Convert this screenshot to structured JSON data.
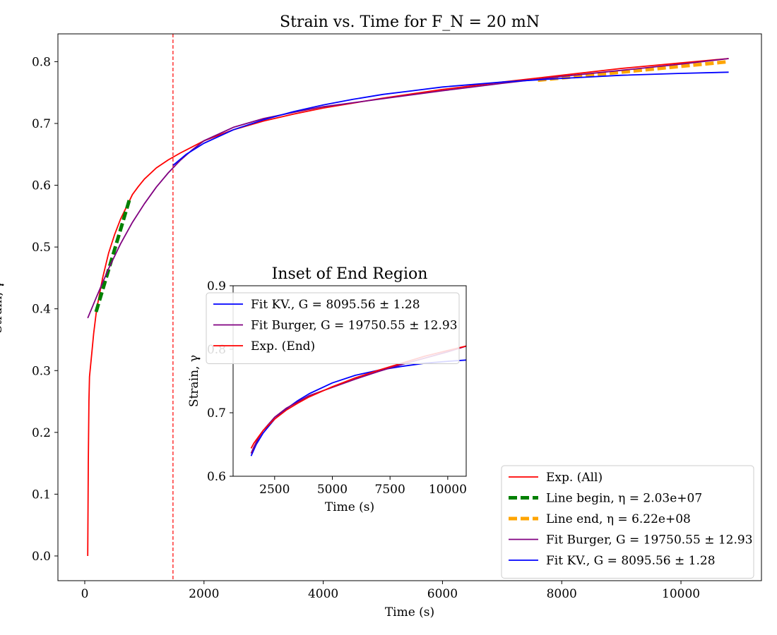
{
  "chart_data": [
    {
      "id": "main",
      "type": "line",
      "title": "Strain vs. Time for F_N = 20 mN",
      "xlabel": "Time (s)",
      "ylabel": "Strain, γ",
      "xlim": [
        -450,
        11350
      ],
      "ylim": [
        -0.04,
        0.845
      ],
      "xticks": [
        0,
        2000,
        4000,
        6000,
        8000,
        10000
      ],
      "yticks": [
        0.0,
        0.1,
        0.2,
        0.3,
        0.4,
        0.5,
        0.6,
        0.7,
        0.8
      ],
      "xtick_labels": [
        "0",
        "2000",
        "4000",
        "6000",
        "8000",
        "10000"
      ],
      "ytick_labels": [
        "0.0",
        "0.1",
        "0.2",
        "0.3",
        "0.4",
        "0.5",
        "0.6",
        "0.7",
        "0.8"
      ],
      "grid": false,
      "legend_position": "bottom-right",
      "vline": {
        "x": 1480,
        "color": "#ff0000",
        "style": "dashed"
      },
      "series": [
        {
          "name": "Exp. (All)",
          "color": "#ff0000",
          "style": "solid",
          "points": [
            [
              50,
              0.0
            ],
            [
              60,
              0.15
            ],
            [
              70,
              0.25
            ],
            [
              80,
              0.29
            ],
            [
              100,
              0.31
            ],
            [
              120,
              0.33
            ],
            [
              150,
              0.36
            ],
            [
              200,
              0.4
            ],
            [
              300,
              0.45
            ],
            [
              400,
              0.49
            ],
            [
              500,
              0.52
            ],
            [
              600,
              0.545
            ],
            [
              700,
              0.565
            ],
            [
              800,
              0.585
            ],
            [
              900,
              0.598
            ],
            [
              1000,
              0.61
            ],
            [
              1200,
              0.628
            ],
            [
              1400,
              0.641
            ],
            [
              1600,
              0.652
            ],
            [
              1800,
              0.662
            ],
            [
              2000,
              0.672
            ],
            [
              2500,
              0.69
            ],
            [
              3000,
              0.704
            ],
            [
              3500,
              0.715
            ],
            [
              4000,
              0.725
            ],
            [
              4500,
              0.733
            ],
            [
              5000,
              0.741
            ],
            [
              5500,
              0.748
            ],
            [
              6000,
              0.755
            ],
            [
              7000,
              0.767
            ],
            [
              8000,
              0.778
            ],
            [
              9000,
              0.789
            ],
            [
              10000,
              0.798
            ],
            [
              10800,
              0.805
            ]
          ]
        },
        {
          "name": "Line begin, η = 2.03e+07",
          "color": "#008000",
          "style": "dashed",
          "points": [
            [
              190,
              0.395
            ],
            [
              760,
              0.58
            ]
          ]
        },
        {
          "name": "Line end, η = 6.22e+08",
          "color": "#ffa500",
          "style": "dashed",
          "points": [
            [
              7600,
              0.77
            ],
            [
              10800,
              0.8
            ]
          ]
        },
        {
          "name": "Fit Burger, G = 19750.55 ± 12.93",
          "color": "#800080",
          "style": "solid",
          "points": [
            [
              50,
              0.385
            ],
            [
              200,
              0.42
            ],
            [
              400,
              0.465
            ],
            [
              600,
              0.505
            ],
            [
              800,
              0.54
            ],
            [
              1000,
              0.57
            ],
            [
              1200,
              0.597
            ],
            [
              1400,
              0.62
            ],
            [
              1600,
              0.64
            ],
            [
              1800,
              0.657
            ],
            [
              2000,
              0.672
            ],
            [
              2500,
              0.694
            ],
            [
              3000,
              0.708
            ],
            [
              3500,
              0.718
            ],
            [
              4000,
              0.727
            ],
            [
              5000,
              0.74
            ],
            [
              6000,
              0.753
            ],
            [
              7000,
              0.765
            ],
            [
              8000,
              0.776
            ],
            [
              9000,
              0.786
            ],
            [
              10000,
              0.796
            ],
            [
              10800,
              0.805
            ]
          ]
        },
        {
          "name": "Fit KV., G = 8095.56 ± 1.28",
          "color": "#0000ff",
          "style": "solid",
          "points": [
            [
              1480,
              0.632
            ],
            [
              1700,
              0.65
            ],
            [
              2000,
              0.668
            ],
            [
              2500,
              0.69
            ],
            [
              3000,
              0.706
            ],
            [
              3500,
              0.719
            ],
            [
              4000,
              0.73
            ],
            [
              4500,
              0.739
            ],
            [
              5000,
              0.747
            ],
            [
              5500,
              0.753
            ],
            [
              6000,
              0.759
            ],
            [
              7000,
              0.767
            ],
            [
              8000,
              0.773
            ],
            [
              9000,
              0.778
            ],
            [
              10000,
              0.781
            ],
            [
              10800,
              0.783
            ]
          ]
        }
      ]
    },
    {
      "id": "inset",
      "type": "line",
      "title": "Inset of End Region",
      "xlabel": "Time (s)",
      "ylabel": "Strain, γ",
      "xlim": [
        700,
        10800
      ],
      "ylim": [
        0.6,
        0.9
      ],
      "xticks": [
        2500,
        5000,
        7500,
        10000
      ],
      "yticks": [
        0.6,
        0.7,
        0.8,
        0.9
      ],
      "xtick_labels": [
        "2500",
        "5000",
        "7500",
        "10000"
      ],
      "ytick_labels": [
        "0.6",
        "0.7",
        "0.8",
        "0.9"
      ],
      "grid": false,
      "legend_position": "top-left",
      "series": [
        {
          "name": "Fit KV., G = 8095.56 ± 1.28",
          "color": "#0000ff",
          "style": "solid",
          "points": [
            [
              1480,
              0.632
            ],
            [
              1700,
              0.65
            ],
            [
              2000,
              0.668
            ],
            [
              2500,
              0.69
            ],
            [
              3000,
              0.706
            ],
            [
              3500,
              0.719
            ],
            [
              4000,
              0.73
            ],
            [
              5000,
              0.747
            ],
            [
              6000,
              0.759
            ],
            [
              7000,
              0.767
            ],
            [
              8000,
              0.773
            ],
            [
              9000,
              0.778
            ],
            [
              10000,
              0.781
            ],
            [
              10800,
              0.783
            ]
          ]
        },
        {
          "name": "Fit Burger, G = 19750.55 ± 12.93",
          "color": "#800080",
          "style": "solid",
          "points": [
            [
              1480,
              0.636
            ],
            [
              1600,
              0.646
            ],
            [
              1800,
              0.66
            ],
            [
              2000,
              0.672
            ],
            [
              2500,
              0.693
            ],
            [
              3000,
              0.707
            ],
            [
              3500,
              0.717
            ],
            [
              4000,
              0.727
            ],
            [
              5000,
              0.74
            ],
            [
              6000,
              0.753
            ],
            [
              7000,
              0.765
            ],
            [
              8000,
              0.776
            ],
            [
              9000,
              0.786
            ],
            [
              10000,
              0.796
            ],
            [
              10800,
              0.805
            ]
          ]
        },
        {
          "name": "Exp. (End)",
          "color": "#ff0000",
          "style": "solid",
          "points": [
            [
              1480,
              0.644
            ],
            [
              1600,
              0.652
            ],
            [
              1800,
              0.662
            ],
            [
              2000,
              0.672
            ],
            [
              2500,
              0.69
            ],
            [
              3000,
              0.704
            ],
            [
              3500,
              0.715
            ],
            [
              4000,
              0.725
            ],
            [
              4500,
              0.733
            ],
            [
              5000,
              0.741
            ],
            [
              5500,
              0.748
            ],
            [
              6000,
              0.755
            ],
            [
              7000,
              0.767
            ],
            [
              8000,
              0.778
            ],
            [
              9000,
              0.789
            ],
            [
              10000,
              0.798
            ],
            [
              10800,
              0.805
            ]
          ]
        }
      ]
    }
  ]
}
